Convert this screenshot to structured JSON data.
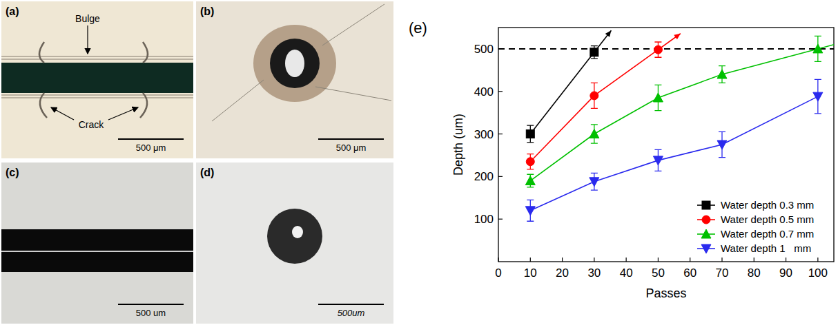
{
  "photos": [
    {
      "label": "(a)",
      "annotations": [
        "Bulge",
        "Crack"
      ],
      "scale_bar": "500 μm"
    },
    {
      "label": "(b)",
      "scale_bar": "500 μm"
    },
    {
      "label": "(c)",
      "scale_bar": "500 um"
    },
    {
      "label": "(d)",
      "scale_bar": "500um"
    }
  ],
  "chart_data": {
    "type": "line",
    "panel_label": "(e)",
    "x_label": "Passes",
    "y_label": "Depth (um)",
    "x": [
      10,
      30,
      50,
      70,
      100
    ],
    "xlim": [
      0,
      105
    ],
    "xticks": [
      0,
      10,
      20,
      30,
      40,
      50,
      60,
      70,
      80,
      90,
      100
    ],
    "ylim": [
      0,
      550
    ],
    "yticks": [
      100,
      200,
      300,
      400,
      500
    ],
    "reference_lines": [
      500
    ],
    "grid": false,
    "legend": "lower right",
    "series": [
      {
        "name": "Water depth 0.3 mm",
        "color": "#000000",
        "marker": "square",
        "values": [
          300,
          492,
          null,
          null,
          null
        ],
        "errors": [
          20,
          15,
          null,
          null,
          null
        ]
      },
      {
        "name": "Water depth 0.5 mm",
        "color": "#ff0000",
        "marker": "circle",
        "values": [
          235,
          390,
          498,
          null,
          null
        ],
        "errors": [
          18,
          30,
          18,
          null,
          null
        ]
      },
      {
        "name": "Water depth 0.7 mm",
        "color": "#00c000",
        "marker": "triangle-up",
        "values": [
          190,
          300,
          385,
          440,
          500
        ],
        "errors": [
          15,
          22,
          30,
          20,
          30
        ]
      },
      {
        "name": "Water depth 1   mm",
        "color": "#2a2aee",
        "marker": "triangle-down",
        "values": [
          120,
          188,
          238,
          275,
          388
        ],
        "errors": [
          25,
          20,
          25,
          30,
          40
        ]
      }
    ]
  }
}
